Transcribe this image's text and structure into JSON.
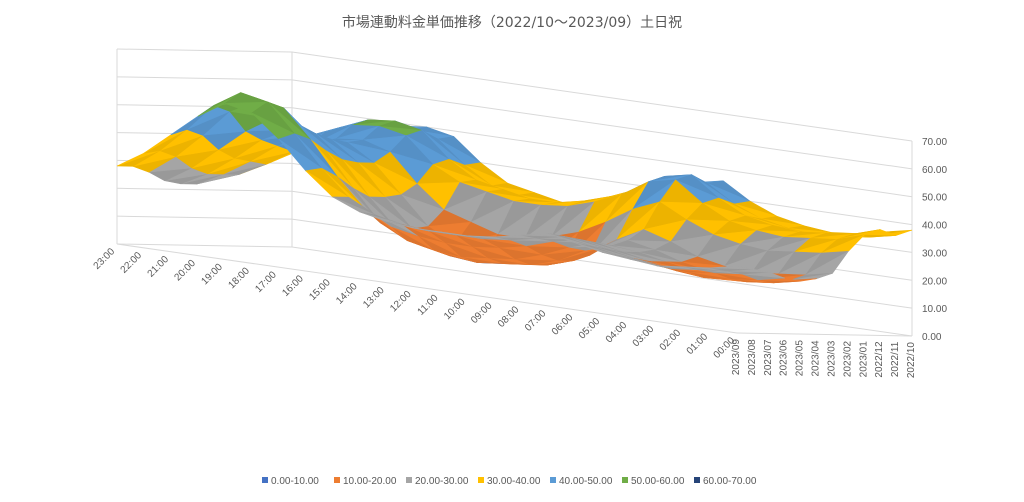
{
  "chart_data": {
    "type": "surface",
    "title": "市場連動料金単価推移（2022/10～2023/09）土日祝",
    "x_categories": [
      "00:00",
      "01:00",
      "02:00",
      "03:00",
      "04:00",
      "05:00",
      "06:00",
      "07:00",
      "08:00",
      "09:00",
      "10:00",
      "11:00",
      "12:00",
      "13:00",
      "14:00",
      "15:00",
      "16:00",
      "17:00",
      "18:00",
      "19:00",
      "20:00",
      "21:00",
      "22:00",
      "23:00"
    ],
    "y_categories": [
      "2022/10",
      "2022/11",
      "2022/12",
      "2023/01",
      "2023/02",
      "2023/03",
      "2023/04",
      "2023/05",
      "2023/06",
      "2023/07",
      "2023/08",
      "2023/09"
    ],
    "z_ticks": [
      "0.00",
      "10.00",
      "20.00",
      "30.00",
      "40.00",
      "50.00",
      "60.00",
      "70.00"
    ],
    "zlim": [
      0,
      70
    ],
    "band_colors": {
      "0.00-10.00": "#4472c4",
      "10.00-20.00": "#ed7d31",
      "20.00-30.00": "#a5a5a5",
      "30.00-40.00": "#ffc000",
      "40.00-50.00": "#5b9bd5",
      "50.00-60.00": "#70ad47",
      "60.00-70.00": "#264478"
    },
    "legend": [
      "0.00-10.00",
      "10.00-20.00",
      "20.00-30.00",
      "30.00-40.00",
      "40.00-50.00",
      "50.00-60.00",
      "60.00-70.00"
    ],
    "legend_position": "bottom",
    "series_by_month": [
      {
        "name": "2022/10",
        "values": [
          38,
          36,
          34,
          33,
          34,
          36,
          40,
          46,
          44,
          38,
          34,
          32,
          30,
          30,
          32,
          34,
          40,
          48,
          50,
          49,
          46,
          42,
          40,
          38
        ]
      },
      {
        "name": "2022/11",
        "values": [
          36,
          34,
          33,
          32,
          33,
          35,
          39,
          45,
          43,
          37,
          33,
          31,
          29,
          29,
          31,
          33,
          39,
          47,
          49,
          48,
          45,
          41,
          38,
          36
        ]
      },
      {
        "name": "2022/12",
        "values": [
          38,
          35,
          34,
          33,
          34,
          36,
          41,
          48,
          46,
          40,
          36,
          33,
          31,
          31,
          33,
          35,
          41,
          50,
          52,
          51,
          47,
          43,
          40,
          38
        ]
      },
      {
        "name": "2023/01",
        "values": [
          36,
          33,
          32,
          31,
          32,
          34,
          39,
          46,
          44,
          38,
          34,
          31,
          30,
          30,
          32,
          34,
          39,
          48,
          50,
          49,
          45,
          41,
          38,
          35
        ]
      },
      {
        "name": "2023/02",
        "values": [
          30,
          28,
          27,
          26,
          27,
          29,
          33,
          38,
          34,
          28,
          23,
          20,
          18,
          18,
          21,
          24,
          32,
          42,
          45,
          44,
          40,
          36,
          33,
          30
        ]
      },
      {
        "name": "2023/03",
        "values": [
          22,
          20,
          19,
          18,
          19,
          21,
          25,
          28,
          23,
          16,
          12,
          10,
          9,
          10,
          13,
          18,
          28,
          38,
          44,
          43,
          38,
          32,
          27,
          24
        ]
      },
      {
        "name": "2023/04",
        "values": [
          20,
          18,
          17,
          16,
          17,
          19,
          22,
          24,
          20,
          14,
          11,
          10,
          9,
          10,
          12,
          17,
          27,
          38,
          45,
          45,
          40,
          33,
          27,
          22
        ]
      },
      {
        "name": "2023/05",
        "values": [
          19,
          17,
          16,
          16,
          17,
          19,
          21,
          22,
          19,
          14,
          11,
          10,
          9,
          10,
          12,
          17,
          27,
          39,
          47,
          47,
          42,
          34,
          27,
          22
        ]
      },
      {
        "name": "2023/06",
        "values": [
          20,
          18,
          17,
          16,
          17,
          19,
          21,
          23,
          20,
          16,
          13,
          12,
          11,
          12,
          14,
          19,
          30,
          42,
          50,
          51,
          45,
          37,
          29,
          23
        ]
      },
      {
        "name": "2023/07",
        "values": [
          22,
          20,
          19,
          18,
          19,
          20,
          22,
          24,
          22,
          19,
          17,
          16,
          16,
          17,
          19,
          24,
          34,
          46,
          56,
          57,
          52,
          42,
          33,
          26
        ]
      },
      {
        "name": "2023/08",
        "values": [
          23,
          21,
          20,
          19,
          20,
          21,
          23,
          25,
          23,
          21,
          20,
          20,
          20,
          21,
          23,
          28,
          37,
          48,
          58,
          60,
          54,
          44,
          35,
          28
        ]
      },
      {
        "name": "2023/09",
        "values": [
          24,
          22,
          21,
          20,
          21,
          22,
          24,
          26,
          24,
          22,
          21,
          21,
          21,
          22,
          24,
          28,
          36,
          46,
          54,
          56,
          50,
          42,
          34,
          28
        ]
      }
    ]
  }
}
